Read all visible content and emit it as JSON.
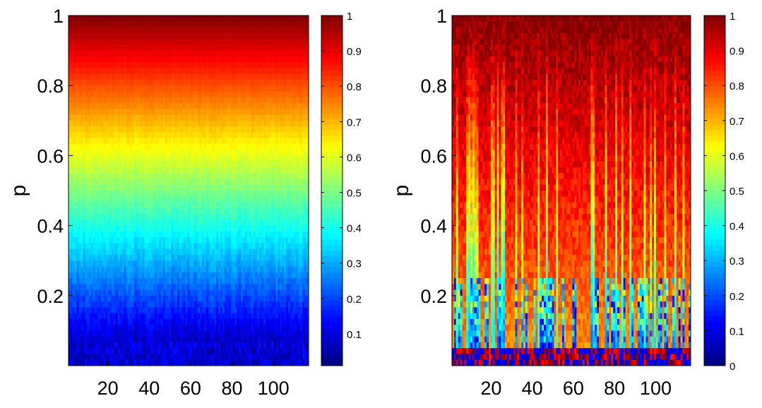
{
  "chart_data": [
    {
      "type": "heatmap",
      "ylabel": "p",
      "xlabel": "",
      "xlim": [
        1,
        117
      ],
      "ylim": [
        0,
        1
      ],
      "xticks": [
        "20",
        "40",
        "60",
        "80",
        "100"
      ],
      "xtick_values": [
        20,
        40,
        60,
        80,
        100
      ],
      "yticks": [
        "0.2",
        "0.4",
        "0.6",
        "0.8",
        "1"
      ],
      "ytick_values": [
        0.2,
        0.4,
        0.6,
        0.8,
        1
      ],
      "colorbar": {
        "range": [
          0.01,
          1
        ],
        "ticks": [
          "0.1",
          "0.2",
          "0.3",
          "0.4",
          "0.5",
          "0.6",
          "0.7",
          "0.8",
          "0.9",
          "1"
        ],
        "tick_values": [
          0.1,
          0.2,
          0.3,
          0.4,
          0.5,
          0.6,
          0.7,
          0.8,
          0.9,
          1
        ]
      },
      "colormap": "jet",
      "n_columns": 117,
      "pattern": "value increases smoothly with p; value ≈ p with fine vertical streaks near low p"
    },
    {
      "type": "heatmap",
      "ylabel": "p",
      "xlabel": "",
      "xlim": [
        1,
        117
      ],
      "ylim": [
        0,
        1
      ],
      "xticks": [
        "20",
        "40",
        "60",
        "80",
        "100"
      ],
      "xtick_values": [
        20,
        40,
        60,
        80,
        100
      ],
      "yticks": [
        "0.2",
        "0.4",
        "0.6",
        "0.8",
        "1"
      ],
      "ytick_values": [
        0.2,
        0.4,
        0.6,
        0.8,
        1
      ],
      "colorbar": {
        "range": [
          0,
          1
        ],
        "ticks": [
          "0",
          "0.1",
          "0.2",
          "0.3",
          "0.4",
          "0.5",
          "0.6",
          "0.7",
          "0.8",
          "0.9",
          "1"
        ],
        "tick_values": [
          0,
          0.1,
          0.2,
          0.3,
          0.4,
          0.5,
          0.6,
          0.7,
          0.8,
          0.9,
          1
        ]
      },
      "colormap": "jet",
      "n_columns": 117,
      "pattern": "mostly high values (0.7–1) with strong vertical streaks; low values only near small p"
    }
  ],
  "colors": {
    "jet_low": "#00008f",
    "jet_high": "#800000"
  }
}
